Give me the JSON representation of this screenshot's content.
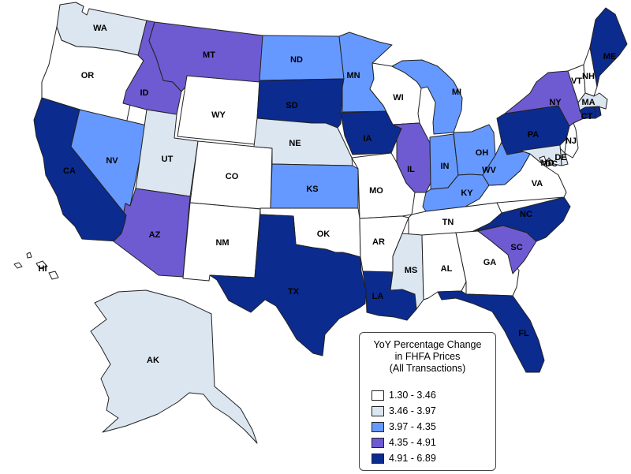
{
  "legend": {
    "title_lines": [
      "YoY Percentage Change",
      "in FHFA Prices",
      "(All Transactions)"
    ],
    "bins": [
      {
        "label": "1.30 - 3.46",
        "color": "#ffffff"
      },
      {
        "label": "3.46 - 3.97",
        "color": "#dce6f0"
      },
      {
        "label": "3.97 - 4.35",
        "color": "#6699ff"
      },
      {
        "label": "4.35 - 4.91",
        "color": "#6e5bd1"
      },
      {
        "label": "4.91 - 6.89",
        "color": "#0b2b8f"
      }
    ]
  },
  "states": {
    "WA": {
      "label": "WA",
      "bin": 1
    },
    "OR": {
      "label": "OR",
      "bin": 0
    },
    "CA": {
      "label": "CA",
      "bin": 4
    },
    "NV": {
      "label": "NV",
      "bin": 2
    },
    "ID": {
      "label": "ID",
      "bin": 3
    },
    "MT": {
      "label": "MT",
      "bin": 3
    },
    "WY": {
      "label": "WY",
      "bin": 0
    },
    "UT": {
      "label": "UT",
      "bin": 1
    },
    "AZ": {
      "label": "AZ",
      "bin": 3
    },
    "CO": {
      "label": "CO",
      "bin": 0
    },
    "NM": {
      "label": "NM",
      "bin": 0
    },
    "ND": {
      "label": "ND",
      "bin": 2
    },
    "SD": {
      "label": "SD",
      "bin": 4
    },
    "NE": {
      "label": "NE",
      "bin": 1
    },
    "KS": {
      "label": "KS",
      "bin": 2
    },
    "OK": {
      "label": "OK",
      "bin": 0
    },
    "TX": {
      "label": "TX",
      "bin": 4
    },
    "MN": {
      "label": "MN",
      "bin": 2
    },
    "IA": {
      "label": "IA",
      "bin": 4
    },
    "MO": {
      "label": "MO",
      "bin": 0
    },
    "AR": {
      "label": "AR",
      "bin": 0
    },
    "LA": {
      "label": "LA",
      "bin": 4
    },
    "WI": {
      "label": "WI",
      "bin": 0
    },
    "IL": {
      "label": "IL",
      "bin": 3
    },
    "MI": {
      "label": "MI",
      "bin": 2
    },
    "IN": {
      "label": "IN",
      "bin": 2
    },
    "OH": {
      "label": "OH",
      "bin": 2
    },
    "KY": {
      "label": "KY",
      "bin": 2
    },
    "TN": {
      "label": "TN",
      "bin": 0
    },
    "MS": {
      "label": "MS",
      "bin": 1
    },
    "AL": {
      "label": "AL",
      "bin": 0
    },
    "GA": {
      "label": "GA",
      "bin": 0
    },
    "FL": {
      "label": "FL",
      "bin": 4
    },
    "SC": {
      "label": "SC",
      "bin": 3
    },
    "NC": {
      "label": "NC",
      "bin": 4
    },
    "VA": {
      "label": "VA",
      "bin": 0
    },
    "WV": {
      "label": "WV",
      "bin": 2
    },
    "PA": {
      "label": "PA",
      "bin": 4
    },
    "NY": {
      "label": "NY",
      "bin": 3
    },
    "VT": {
      "label": "VT",
      "bin": 0
    },
    "NH": {
      "label": "NH",
      "bin": 0
    },
    "ME": {
      "label": "ME",
      "bin": 4
    },
    "MA": {
      "label": "MA",
      "bin": 1
    },
    "CT": {
      "label": "CT",
      "bin": 4
    },
    "RI": {
      "label": "",
      "bin": 4
    },
    "NJ": {
      "label": "NJ",
      "bin": 0
    },
    "DE": {
      "label": "DE",
      "bin": 1
    },
    "MD": {
      "label": "MD",
      "bin": 1
    },
    "DC": {
      "label": "DC",
      "bin": 0
    },
    "AK": {
      "label": "AK",
      "bin": 1
    },
    "HI": {
      "label": "HI",
      "bin": 0
    }
  }
}
